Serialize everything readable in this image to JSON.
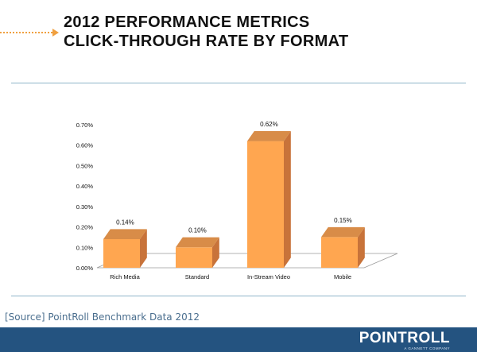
{
  "header": {
    "title_line1": "2012 PERFORMANCE METRICS",
    "title_line2": "CLICK-THROUGH RATE BY FORMAT"
  },
  "chart_data": {
    "type": "bar",
    "categories": [
      "Rich Media",
      "Standard",
      "In-Stream Video",
      "Mobile"
    ],
    "values": [
      0.14,
      0.1,
      0.62,
      0.15
    ],
    "data_labels": [
      "0.14%",
      "0.10%",
      "0.62%",
      "0.15%"
    ],
    "y_ticks": [
      "0.00%",
      "0.10%",
      "0.20%",
      "0.30%",
      "0.40%",
      "0.50%",
      "0.60%",
      "0.70%"
    ],
    "ylim": [
      0,
      0.7
    ],
    "unit": "%",
    "grid": false,
    "style": "3d",
    "bar_color": "#ffa650",
    "bar_side_color": "#c8733a",
    "bar_top_color": "#d88c48",
    "floor_color": "#ffffff"
  },
  "source": {
    "text": "[Source] PointRoll Benchmark Data 2012"
  },
  "footer": {
    "logo": "POINTROLL",
    "logo_tagline": "A GANNETT COMPANY",
    "background": "#245380"
  },
  "colors": {
    "arrow": "#f0a040",
    "rule": "#8fb5c9",
    "source_text": "#4a6e8e"
  }
}
